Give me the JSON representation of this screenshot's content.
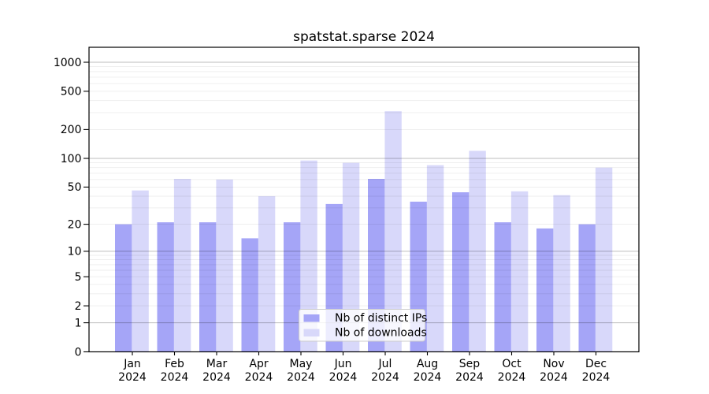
{
  "chart_data": {
    "type": "bar",
    "title": "spatstat.sparse 2024",
    "categories": [
      "Jan 2024",
      "Feb 2024",
      "Mar 2024",
      "Apr 2024",
      "May 2024",
      "Jun 2024",
      "Jul 2024",
      "Aug 2024",
      "Sep 2024",
      "Oct 2024",
      "Nov 2024",
      "Dec 2024"
    ],
    "series": [
      {
        "name": "Nb of distinct IPs",
        "color": "#a5a5f7",
        "values": [
          20,
          21,
          21,
          14,
          21,
          33,
          61,
          35,
          44,
          21,
          18,
          20
        ]
      },
      {
        "name": "Nb of downloads",
        "color": "#d8d8fa",
        "values": [
          46,
          61,
          60,
          40,
          95,
          90,
          310,
          85,
          120,
          45,
          41,
          80
        ]
      }
    ],
    "xlabel": "",
    "ylabel": "",
    "yscale": "log1p",
    "ylim": [
      0,
      1430
    ],
    "y_ticks": [
      0,
      1,
      2,
      5,
      10,
      20,
      50,
      100,
      200,
      500,
      1000
    ],
    "grid": {
      "on": true,
      "major_lines": [
        1,
        10,
        100,
        1000
      ],
      "minor_base": [
        2,
        3,
        4,
        5,
        6,
        7,
        8,
        9
      ]
    },
    "legend": {
      "position": "lower center",
      "entries": [
        "Nb of distinct IPs",
        "Nb of downloads"
      ]
    },
    "colors": {
      "bar_dark": "#a5a5f7",
      "bar_light": "#d8d8fa",
      "spine": "#000000",
      "grid_major": "#bdbdbd",
      "grid_minor": "#e9e9e9",
      "legend_border": "#cccccc"
    }
  }
}
